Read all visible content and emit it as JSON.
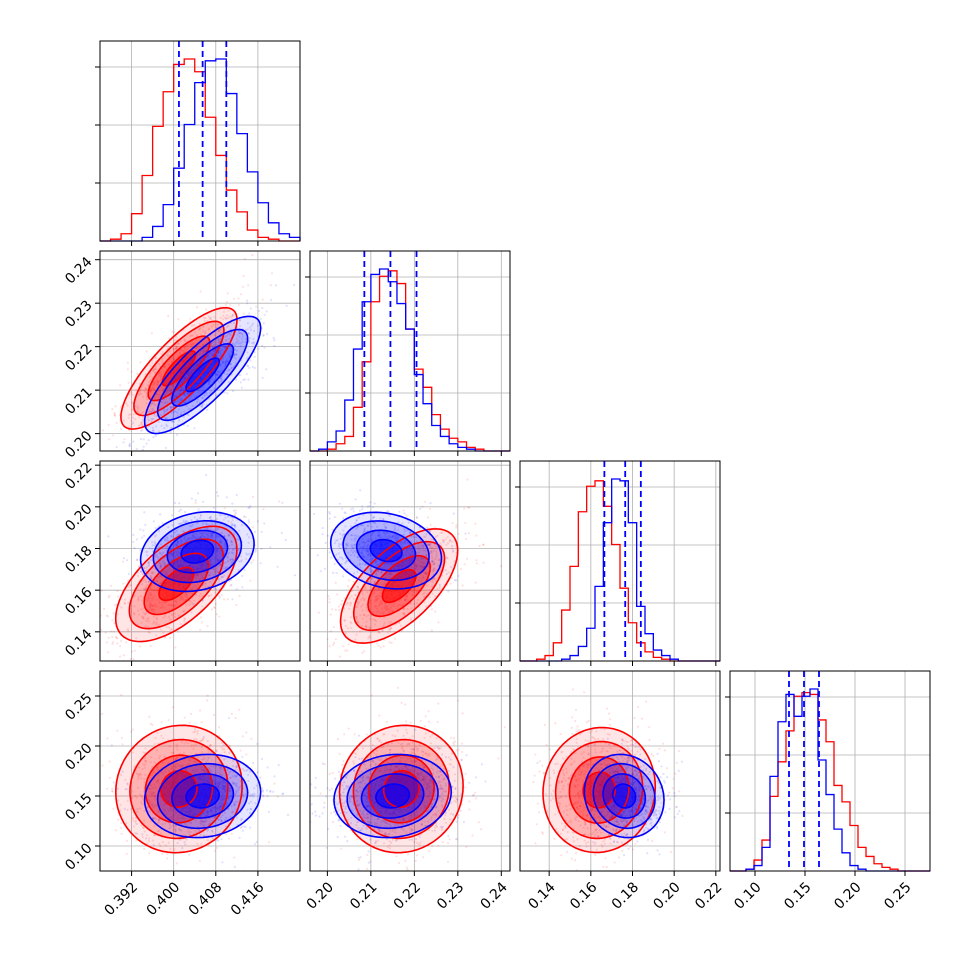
{
  "chart_data": {
    "type": "corner",
    "grid": true,
    "colors": {
      "first": "#ff0000",
      "second": "#0000ff",
      "frame": "#000000",
      "grid": "#b0b0b0"
    },
    "series": [
      {
        "color": "#ff0000"
      },
      {
        "color": "#0000ff"
      }
    ],
    "parameters": [
      {
        "range": [
          0.386,
          0.424
        ],
        "ticks": [
          "0.392",
          "0.400",
          "0.408",
          "0.416"
        ],
        "tick_values": [
          0.392,
          0.4,
          0.408,
          0.416
        ]
      },
      {
        "range": [
          0.196,
          0.242
        ],
        "ticks": [
          "0.20",
          "0.21",
          "0.22",
          "0.23",
          "0.24"
        ],
        "tick_values": [
          0.2,
          0.21,
          0.22,
          0.23,
          0.24
        ]
      },
      {
        "range": [
          0.126,
          0.222
        ],
        "ticks": [
          "0.14",
          "0.16",
          "0.18",
          "0.20",
          "0.22"
        ],
        "tick_values": [
          0.14,
          0.16,
          0.18,
          0.2,
          0.22
        ]
      },
      {
        "range": [
          0.075,
          0.275
        ],
        "ticks": [
          "0.10",
          "0.15",
          "0.20",
          "0.25"
        ],
        "tick_values": [
          0.1,
          0.15,
          0.2,
          0.25
        ]
      }
    ],
    "marginals": [
      {
        "bin_edges": [
          0.386,
          0.388,
          0.39,
          0.392,
          0.394,
          0.396,
          0.398,
          0.4,
          0.402,
          0.404,
          0.406,
          0.408,
          0.41,
          0.412,
          0.414,
          0.416,
          0.418,
          0.42,
          0.422,
          0.424
        ],
        "first": [
          0.0,
          0.01,
          0.04,
          0.15,
          0.36,
          0.63,
          0.82,
          0.97,
          1.0,
          0.93,
          0.68,
          0.47,
          0.28,
          0.16,
          0.06,
          0.02,
          0.01,
          0.0,
          0.0
        ],
        "second": [
          0.0,
          0.0,
          0.0,
          0.0,
          0.02,
          0.08,
          0.2,
          0.4,
          0.64,
          0.87,
          0.99,
          1.0,
          0.81,
          0.59,
          0.38,
          0.21,
          0.1,
          0.04,
          0.02
        ],
        "quantiles": [
          0.401,
          0.4055,
          0.41
        ]
      },
      {
        "bin_edges": [
          0.196,
          0.198,
          0.2,
          0.202,
          0.204,
          0.206,
          0.208,
          0.21,
          0.212,
          0.214,
          0.216,
          0.218,
          0.22,
          0.222,
          0.224,
          0.226,
          0.228,
          0.23,
          0.232,
          0.234,
          0.236,
          0.238,
          0.24,
          0.242
        ],
        "first": [
          0.0,
          0.0,
          0.01,
          0.04,
          0.08,
          0.24,
          0.49,
          0.82,
          0.96,
          0.99,
          0.92,
          0.67,
          0.45,
          0.35,
          0.2,
          0.12,
          0.07,
          0.05,
          0.02,
          0.01,
          0.0,
          0.0,
          0.0
        ],
        "second": [
          0.0,
          0.01,
          0.05,
          0.11,
          0.28,
          0.56,
          0.82,
          0.97,
          1.0,
          0.93,
          0.81,
          0.67,
          0.42,
          0.26,
          0.14,
          0.08,
          0.04,
          0.02,
          0.01,
          0.0,
          0.0,
          0.0,
          0.0
        ],
        "quantiles": [
          0.2085,
          0.2145,
          0.2205
        ]
      },
      {
        "bin_edges": [
          0.126,
          0.13,
          0.134,
          0.138,
          0.142,
          0.146,
          0.15,
          0.154,
          0.158,
          0.162,
          0.166,
          0.17,
          0.174,
          0.178,
          0.182,
          0.186,
          0.19,
          0.194,
          0.198,
          0.202,
          0.206,
          0.21,
          0.214,
          0.218,
          0.222
        ],
        "first": [
          0.0,
          0.0,
          0.01,
          0.03,
          0.1,
          0.28,
          0.52,
          0.82,
          0.96,
          0.99,
          0.85,
          0.64,
          0.4,
          0.21,
          0.1,
          0.05,
          0.02,
          0.01,
          0.0,
          0.0,
          0.0,
          0.0,
          0.0,
          0.0
        ],
        "second": [
          0.0,
          0.0,
          0.0,
          0.0,
          0.0,
          0.01,
          0.03,
          0.08,
          0.18,
          0.41,
          0.76,
          1.0,
          0.99,
          0.76,
          0.3,
          0.15,
          0.06,
          0.03,
          0.01,
          0.0,
          0.0,
          0.0,
          0.0,
          0.0
        ],
        "quantiles": [
          0.1665,
          0.1765,
          0.184
        ]
      },
      {
        "bin_edges": [
          0.075,
          0.083,
          0.091,
          0.099,
          0.107,
          0.115,
          0.123,
          0.131,
          0.139,
          0.147,
          0.155,
          0.163,
          0.171,
          0.179,
          0.187,
          0.195,
          0.203,
          0.211,
          0.219,
          0.227,
          0.235,
          0.243,
          0.251,
          0.259,
          0.267,
          0.275
        ],
        "first": [
          0.0,
          0.0,
          0.01,
          0.06,
          0.17,
          0.41,
          0.6,
          0.77,
          0.96,
          0.98,
          0.97,
          0.83,
          0.71,
          0.47,
          0.38,
          0.25,
          0.13,
          0.08,
          0.04,
          0.02,
          0.01,
          0.0,
          0.0,
          0.0
        ],
        "second": [
          0.0,
          0.0,
          0.01,
          0.03,
          0.13,
          0.52,
          0.82,
          0.97,
          0.85,
          0.96,
          1.0,
          0.61,
          0.42,
          0.23,
          0.1,
          0.03,
          0.01,
          0.0,
          0.0,
          0.0,
          0.0,
          0.0,
          0.0,
          0.0
        ],
        "quantiles": [
          0.134,
          0.149,
          0.164
        ]
      }
    ],
    "joints": [
      {
        "x": 0,
        "y": 1,
        "first": {
          "mean": [
            0.401,
            0.215
          ],
          "std": [
            0.0045,
            0.0057
          ],
          "rho": 0.8
        },
        "second": {
          "mean": [
            0.4055,
            0.2135
          ],
          "std": [
            0.0045,
            0.0055
          ],
          "rho": 0.8
        }
      },
      {
        "x": 0,
        "y": 2,
        "first": {
          "mean": [
            0.4005,
            0.163
          ],
          "std": [
            0.0047,
            0.0113
          ],
          "rho": 0.6
        },
        "second": {
          "mean": [
            0.4045,
            0.1785
          ],
          "std": [
            0.0044,
            0.0078
          ],
          "rho": 0.2
        }
      },
      {
        "x": 1,
        "y": 2,
        "first": {
          "mean": [
            0.2165,
            0.162
          ],
          "std": [
            0.0055,
            0.0112
          ],
          "rho": 0.62
        },
        "second": {
          "mean": [
            0.2135,
            0.179
          ],
          "std": [
            0.0052,
            0.0075
          ],
          "rho": -0.2
        }
      },
      {
        "x": 0,
        "y": 3,
        "first": {
          "mean": [
            0.401,
            0.157
          ],
          "std": [
            0.0049,
            0.026
          ],
          "rho": 0.05
        },
        "second": {
          "mean": [
            0.4055,
            0.15
          ],
          "std": [
            0.0045,
            0.017
          ],
          "rho": 0.1
        }
      },
      {
        "x": 1,
        "y": 3,
        "first": {
          "mean": [
            0.217,
            0.157
          ],
          "std": [
            0.0058,
            0.026
          ],
          "rho": 0.05
        },
        "second": {
          "mean": [
            0.215,
            0.15
          ],
          "std": [
            0.0055,
            0.017
          ],
          "rho": 0.1
        }
      },
      {
        "x": 2,
        "y": 3,
        "first": {
          "mean": [
            0.164,
            0.156
          ],
          "std": [
            0.011,
            0.0255
          ],
          "rho": 0.05
        },
        "second": {
          "mean": [
            0.176,
            0.15
          ],
          "std": [
            0.0078,
            0.017
          ],
          "rho": -0.1
        }
      }
    ]
  }
}
